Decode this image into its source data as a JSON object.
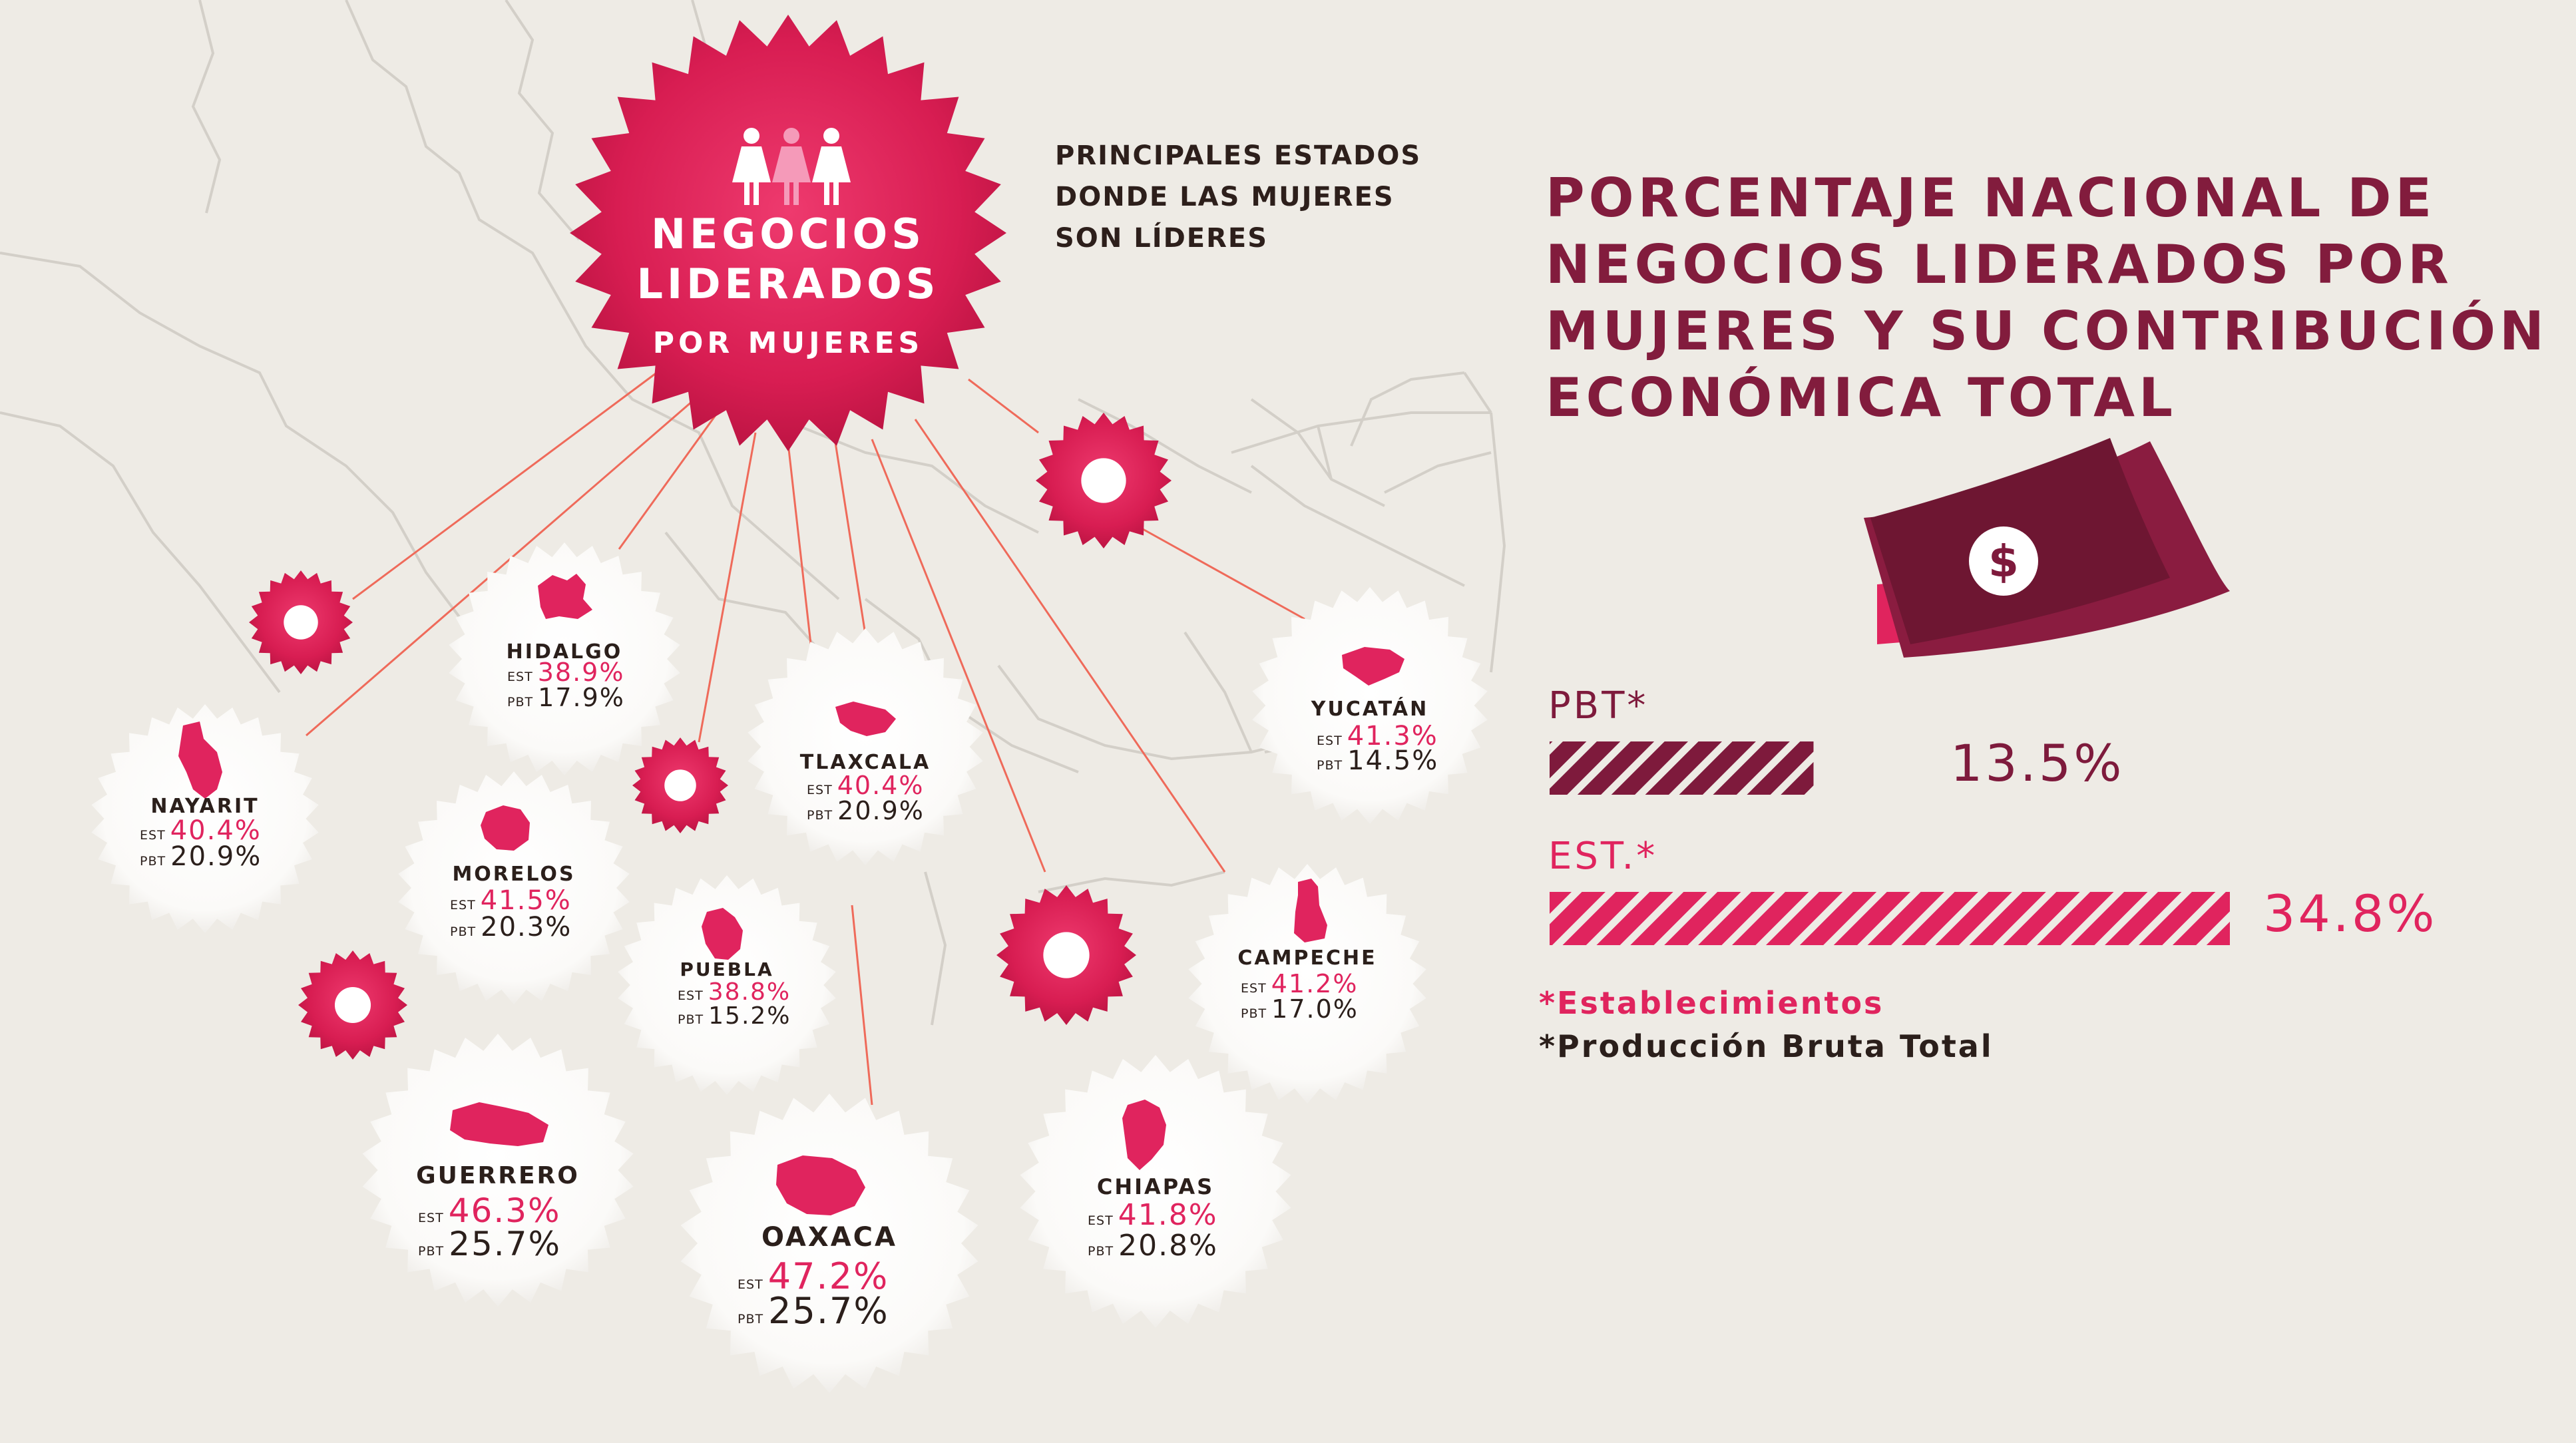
{
  "hero": {
    "line1": "NEGOCIOS",
    "line2": "LIDERADOS",
    "line3": "POR MUJERES",
    "icon": "three-women-icon"
  },
  "subtitle": [
    "PRINCIPALES ESTADOS",
    "DONDE LAS MUJERES",
    "SON LÍDERES"
  ],
  "title": [
    "PORCENTAJE NACIONAL DE",
    "NEGOCIOS LIDERADOS POR",
    "MUJERES Y SU CONTRIBUCIÓN",
    "ECONÓMICA TOTAL"
  ],
  "money_icon": "dollar-bill-icon",
  "notes": {
    "est": "*Establecimientos",
    "pbt": "*Producción Bruta Total"
  },
  "colors": {
    "accent": "#e0245e",
    "dark": "#821c3d",
    "background": "#eeebe5",
    "text": "#2b1f1b"
  },
  "chart_data": [
    {
      "type": "bar",
      "title": "PORCENTAJE NACIONAL DE NEGOCIOS LIDERADOS POR MUJERES Y SU CONTRIBUCIÓN ECONÓMICA TOTAL",
      "categories": [
        "PBT*",
        "EST.*"
      ],
      "values": [
        13.5,
        34.8
      ],
      "value_labels": [
        "13.5%",
        "34.8%"
      ],
      "colors": [
        "#7e1a3c",
        "#e0245e"
      ],
      "xlim": [
        0,
        100
      ]
    },
    {
      "type": "table",
      "title": "PRINCIPALES ESTADOS DONDE LAS MUJERES SON LÍDERES",
      "columns": [
        "EST",
        "PBT"
      ],
      "rows": [
        {
          "state": "HIDALGO",
          "est": "38.9%",
          "pbt": "17.9%"
        },
        {
          "state": "NAYARIT",
          "est": "40.4%",
          "pbt": "20.9%"
        },
        {
          "state": "TLAXCALA",
          "est": "40.4%",
          "pbt": "20.9%"
        },
        {
          "state": "MORELOS",
          "est": "41.5%",
          "pbt": "20.3%"
        },
        {
          "state": "PUEBLA",
          "est": "38.8%",
          "pbt": "15.2%"
        },
        {
          "state": "YUCATÁN",
          "est": "41.3%",
          "pbt": "14.5%"
        },
        {
          "state": "CAMPECHE",
          "est": "41.2%",
          "pbt": "17.0%"
        },
        {
          "state": "GUERRERO",
          "est": "46.3%",
          "pbt": "25.7%"
        },
        {
          "state": "OAXACA",
          "est": "47.2%",
          "pbt": "25.7%"
        },
        {
          "state": "CHIAPAS",
          "est": "41.8%",
          "pbt": "20.8%"
        }
      ]
    }
  ]
}
